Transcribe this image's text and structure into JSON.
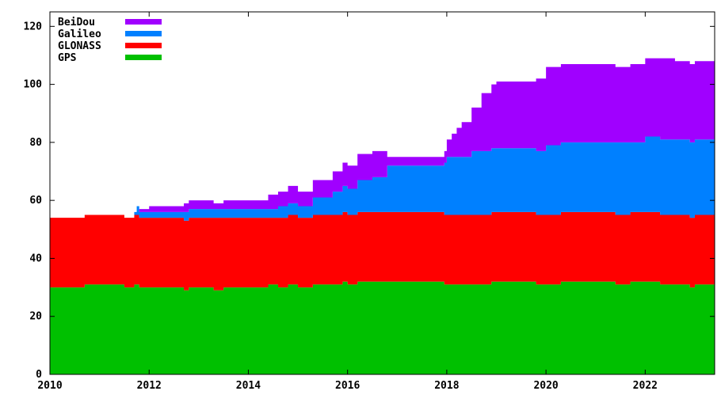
{
  "chart_data": {
    "type": "area",
    "stacked": true,
    "title": "",
    "xlabel": "",
    "ylabel": "",
    "xlim": [
      2010,
      2023.4
    ],
    "ylim": [
      0,
      125
    ],
    "x_ticks": [
      2010,
      2012,
      2014,
      2016,
      2018,
      2020,
      2022
    ],
    "y_ticks": [
      0,
      20,
      40,
      60,
      80,
      100,
      120
    ],
    "grid": false,
    "legend_position": "top-left",
    "x": [
      2010.0,
      2010.7,
      2011.0,
      2011.5,
      2011.7,
      2011.75,
      2011.8,
      2011.9,
      2012.0,
      2012.2,
      2012.5,
      2012.7,
      2012.8,
      2013.0,
      2013.2,
      2013.3,
      2013.5,
      2014.0,
      2014.4,
      2014.6,
      2014.8,
      2015.0,
      2015.3,
      2015.7,
      2015.9,
      2016.0,
      2016.2,
      2016.5,
      2016.8,
      2017.0,
      2017.5,
      2017.8,
      2017.95,
      2018.0,
      2018.1,
      2018.2,
      2018.3,
      2018.5,
      2018.7,
      2018.9,
      2019.0,
      2019.3,
      2019.6,
      2019.8,
      2020.0,
      2020.3,
      2020.5,
      2021.0,
      2021.2,
      2021.4,
      2021.7,
      2022.0,
      2022.3,
      2022.6,
      2022.9,
      2023.0,
      2023.4
    ],
    "series": [
      {
        "name": "GPS",
        "color": "#00c000",
        "values": [
          30,
          31,
          31,
          30,
          31,
          31,
          30,
          30,
          30,
          30,
          30,
          29,
          30,
          30,
          30,
          29,
          30,
          30,
          31,
          30,
          31,
          30,
          31,
          31,
          32,
          31,
          32,
          32,
          32,
          32,
          32,
          32,
          31,
          31,
          31,
          31,
          31,
          31,
          31,
          32,
          32,
          32,
          32,
          31,
          31,
          32,
          32,
          32,
          32,
          31,
          32,
          32,
          31,
          31,
          30,
          31,
          31
        ]
      },
      {
        "name": "GLONASS",
        "color": "#ff0000",
        "values": [
          24,
          24,
          24,
          24,
          24,
          24,
          24,
          24,
          24,
          24,
          24,
          24,
          24,
          24,
          24,
          25,
          24,
          24,
          23,
          24,
          24,
          24,
          24,
          24,
          24,
          24,
          24,
          24,
          24,
          24,
          24,
          24,
          24,
          24,
          24,
          24,
          24,
          24,
          24,
          24,
          24,
          24,
          24,
          24,
          24,
          24,
          24,
          24,
          24,
          24,
          24,
          24,
          24,
          24,
          24,
          24,
          24
        ]
      },
      {
        "name": "Galileo",
        "color": "#0080ff",
        "values": [
          0,
          0,
          0,
          0,
          1,
          3,
          2,
          2,
          2,
          2,
          2,
          3,
          3,
          3,
          3,
          3,
          3,
          3,
          3,
          4,
          4,
          4,
          6,
          8,
          9,
          9,
          11,
          12,
          16,
          16,
          16,
          16,
          18,
          20,
          20,
          20,
          20,
          22,
          22,
          22,
          22,
          22,
          22,
          22,
          24,
          24,
          24,
          24,
          24,
          25,
          24,
          26,
          26,
          26,
          26,
          26,
          26
        ]
      },
      {
        "name": "BeiDou",
        "color": "#a000ff",
        "values": [
          0,
          0,
          0,
          0,
          0,
          0,
          1,
          1,
          2,
          2,
          2,
          3,
          3,
          3,
          3,
          2,
          3,
          3,
          5,
          5,
          6,
          5,
          6,
          7,
          8,
          8,
          9,
          9,
          3,
          3,
          3,
          3,
          4,
          6,
          8,
          10,
          12,
          15,
          20,
          22,
          23,
          23,
          23,
          25,
          27,
          27,
          27,
          27,
          27,
          26,
          27,
          27,
          28,
          27,
          27,
          27,
          27
        ]
      }
    ]
  }
}
